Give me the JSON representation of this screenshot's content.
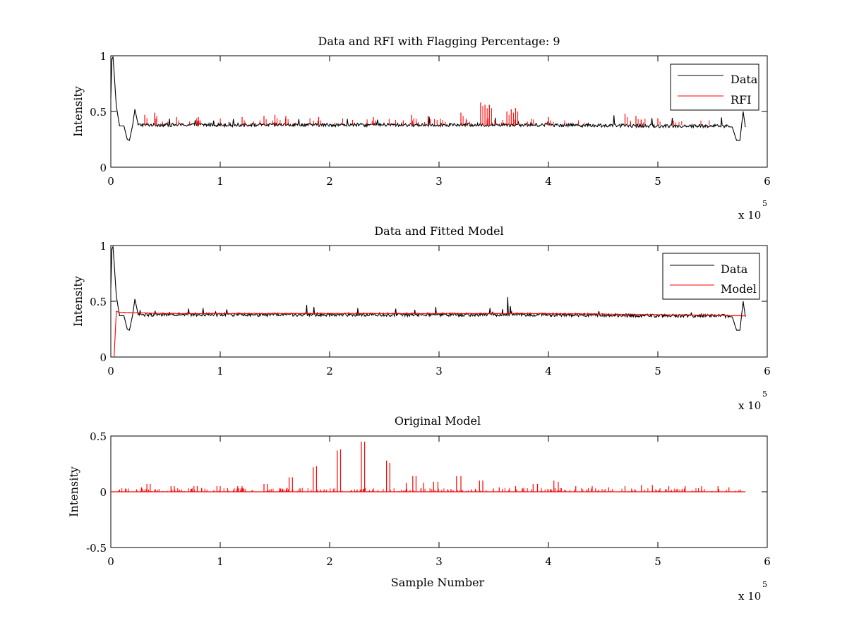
{
  "chart_data": [
    {
      "type": "line",
      "title": "Data and RFI with Flagging Percentage: 9",
      "xlabel": "",
      "ylabel": "Intensity",
      "xlim": [
        0,
        600000
      ],
      "ylim": [
        0,
        1
      ],
      "xticks": [
        "0",
        "1",
        "2",
        "3",
        "4",
        "5",
        "6"
      ],
      "yticks": [
        "0",
        "0.5",
        "1"
      ],
      "x_multiplier": "x 10",
      "x_multiplier_exp": "5",
      "legend": {
        "position": "top-right",
        "entries": [
          "Data",
          "RFI"
        ]
      },
      "series": [
        {
          "name": "Data",
          "color": "#000000",
          "x": [
            0,
            1000,
            2000,
            3000,
            5000,
            8000,
            12000,
            15000,
            17000,
            20000,
            22000,
            25000,
            50000,
            100000,
            200000,
            300000,
            340000,
            400000,
            500000,
            560000,
            568000,
            572000,
            575000,
            578000,
            580000
          ],
          "y": [
            0.62,
            0.97,
            0.99,
            0.85,
            0.55,
            0.37,
            0.37,
            0.25,
            0.24,
            0.38,
            0.52,
            0.38,
            0.38,
            0.38,
            0.38,
            0.38,
            0.38,
            0.38,
            0.37,
            0.37,
            0.36,
            0.24,
            0.24,
            0.5,
            0.36
          ]
        },
        {
          "name": "RFI",
          "color": "#ff0000",
          "x": [
            31000,
            40000,
            60000,
            80000,
            120000,
            140000,
            150000,
            160000,
            190000,
            240000,
            275000,
            290000,
            320000,
            338000,
            342000,
            346000,
            362000,
            366000,
            370000,
            400000,
            470000,
            480000,
            500000
          ],
          "y": [
            0.47,
            0.49,
            0.45,
            0.45,
            0.45,
            0.46,
            0.47,
            0.46,
            0.45,
            0.45,
            0.47,
            0.46,
            0.49,
            0.58,
            0.56,
            0.56,
            0.5,
            0.52,
            0.53,
            0.45,
            0.48,
            0.46,
            0.44
          ]
        }
      ]
    },
    {
      "type": "line",
      "title": "Data and Fitted Model",
      "xlabel": "",
      "ylabel": "Intensity",
      "xlim": [
        0,
        600000
      ],
      "ylim": [
        0,
        1
      ],
      "xticks": [
        "0",
        "1",
        "2",
        "3",
        "4",
        "5",
        "6"
      ],
      "yticks": [
        "0",
        "0.5",
        "1"
      ],
      "x_multiplier": "x 10",
      "x_multiplier_exp": "5",
      "legend": {
        "position": "top-right",
        "entries": [
          "Data",
          "Model"
        ]
      },
      "series": [
        {
          "name": "Data",
          "color": "#000000",
          "x": [
            0,
            1000,
            2000,
            3000,
            5000,
            8000,
            12000,
            15000,
            17000,
            20000,
            22000,
            25000,
            50000,
            100000,
            200000,
            300000,
            340000,
            400000,
            500000,
            560000,
            568000,
            572000,
            575000,
            578000,
            580000
          ],
          "y": [
            0.62,
            0.97,
            0.99,
            0.85,
            0.55,
            0.37,
            0.37,
            0.25,
            0.24,
            0.38,
            0.52,
            0.38,
            0.38,
            0.38,
            0.38,
            0.38,
            0.38,
            0.38,
            0.37,
            0.37,
            0.36,
            0.24,
            0.24,
            0.5,
            0.36
          ]
        },
        {
          "name": "Model",
          "color": "#ff0000",
          "x": [
            3000,
            4000,
            5000,
            8000,
            50000,
            100000,
            200000,
            300000,
            400000,
            500000,
            580000
          ],
          "y": [
            0.0,
            0.2,
            0.41,
            0.4,
            0.39,
            0.39,
            0.39,
            0.39,
            0.39,
            0.38,
            0.37
          ]
        }
      ]
    },
    {
      "type": "line",
      "title": "Original Model",
      "xlabel": "Sample Number",
      "ylabel": "Intensity",
      "xlim": [
        0,
        600000
      ],
      "ylim": [
        -0.5,
        0.5
      ],
      "xticks": [
        "0",
        "1",
        "2",
        "3",
        "4",
        "5",
        "6"
      ],
      "yticks": [
        "-0.5",
        "0",
        "0.5"
      ],
      "x_multiplier": "x 10",
      "x_multiplier_exp": "5",
      "series": [
        {
          "name": "",
          "color": "#ff0000",
          "spikes_x": [
            8000,
            28000,
            33000,
            36000,
            55000,
            58000,
            76000,
            79000,
            97000,
            100000,
            116000,
            120000,
            140000,
            143000,
            163000,
            166000,
            185000,
            188000,
            207000,
            210000,
            229000,
            232000,
            252000,
            255000,
            270000,
            276000,
            279000,
            286000,
            295000,
            299000,
            316000,
            320000,
            337000,
            340000,
            355000,
            370000,
            386000,
            390000,
            405000,
            409000,
            425000,
            440000,
            455000,
            470000,
            485000,
            495000,
            510000,
            525000,
            540000,
            555000,
            565000
          ],
          "spikes_y": [
            0.02,
            0.04,
            0.07,
            0.07,
            0.05,
            0.05,
            0.05,
            0.05,
            0.05,
            0.05,
            0.05,
            0.05,
            0.07,
            0.07,
            0.13,
            0.13,
            0.22,
            0.23,
            0.37,
            0.38,
            0.45,
            0.45,
            0.28,
            0.26,
            0.08,
            0.14,
            0.14,
            0.08,
            0.09,
            0.09,
            0.14,
            0.14,
            0.1,
            0.1,
            0.04,
            0.05,
            0.07,
            0.07,
            0.1,
            0.09,
            0.05,
            0.05,
            0.04,
            0.05,
            0.06,
            0.06,
            0.05,
            0.05,
            0.05,
            0.05,
            0.04
          ]
        }
      ]
    }
  ]
}
